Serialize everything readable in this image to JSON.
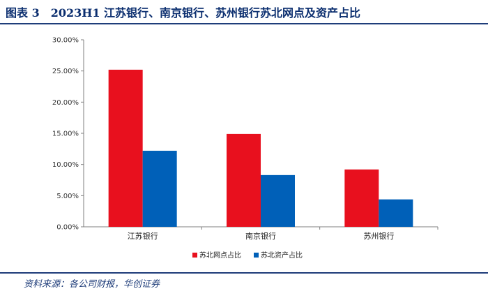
{
  "header": {
    "title": "图表 3　2023H1 江苏银行、南京银行、苏州银行苏北网点及资产占比"
  },
  "footer": {
    "source": "资料来源：各公司财报，华创证券"
  },
  "chart_data": {
    "type": "bar",
    "categories": [
      "江苏银行",
      "南京银行",
      "苏州银行"
    ],
    "series": [
      {
        "name": "苏北网点占比",
        "values": [
          25.2,
          14.9,
          9.2
        ],
        "color": "#e8101e"
      },
      {
        "name": "苏北资产占比",
        "values": [
          12.2,
          8.3,
          4.4
        ],
        "color": "#0060b8"
      }
    ],
    "ylim": [
      0,
      30
    ],
    "yticks": [
      "0.00%",
      "5.00%",
      "10.00%",
      "15.00%",
      "20.00%",
      "25.00%",
      "30.00%"
    ],
    "grid": false,
    "legend": "bottom"
  }
}
